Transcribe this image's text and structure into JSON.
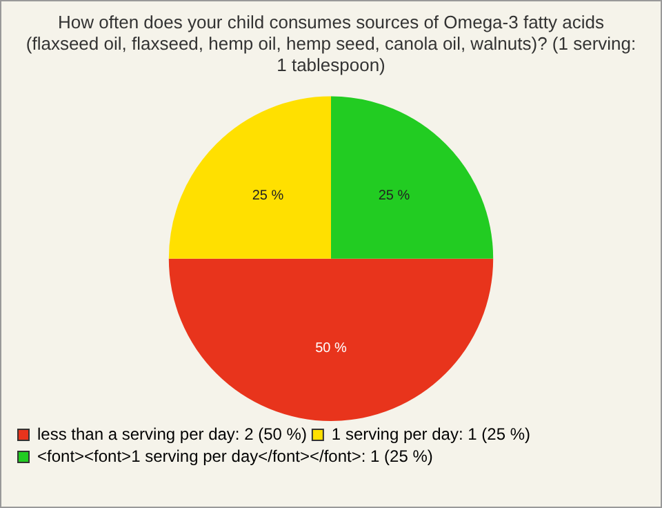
{
  "chart_data": {
    "type": "pie",
    "title": "How often does your child consumes sources of Omega-3 fatty acids (flaxseed oil, flaxseed, hemp oil, hemp seed, canola oil, walnuts)? (1 serving: 1 tablespoon)",
    "categories": [
      "less than a serving per day: 2 (50 %)",
      "1 serving per day: 1 (25 %)",
      "<font><font>1 serving per day</font></font>: 1 (25 %)"
    ],
    "values": [
      50,
      25,
      25
    ],
    "colors": [
      "#e8341c",
      "#ffe000",
      "#22cc22"
    ],
    "value_labels": [
      "50 %",
      "25 %",
      "25 %"
    ],
    "legend": "bottom left"
  }
}
